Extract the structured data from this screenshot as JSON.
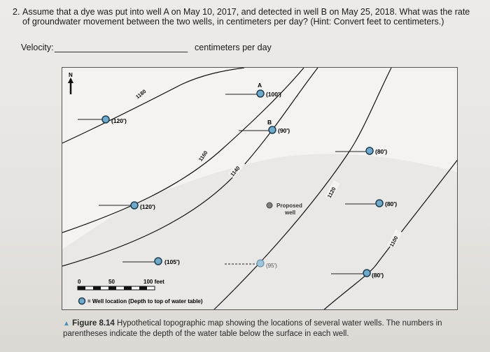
{
  "question": {
    "number": "2.",
    "text": "Assume that a dye was put into well A on May 10, 2017, and detected in well B on May 25, 2018. What was the rate of groundwater movement between the two wells, in centimeters per day? (Hint: Convert feet to centimeters.)",
    "velocity_label": "Velocity:",
    "velocity_unit": "centimeters per day"
  },
  "map": {
    "north_label": "N",
    "contours": [
      "1180",
      "1160",
      "1140",
      "1120",
      "1100"
    ],
    "wells": [
      {
        "id": "",
        "depth": "(120')"
      },
      {
        "id": "A",
        "depth": "(100')"
      },
      {
        "id": "B",
        "depth": "(90')"
      },
      {
        "id": "",
        "depth": "(80')"
      },
      {
        "id": "",
        "depth": "(120')"
      },
      {
        "id": "",
        "depth": "(80')"
      },
      {
        "id": "",
        "depth": "(105')"
      },
      {
        "id": "",
        "depth": "(95')"
      },
      {
        "id": "",
        "depth": "(80')"
      }
    ],
    "proposed_well_label_1": "Proposed",
    "proposed_well_label_2": "well",
    "scale": {
      "labels": [
        "0",
        "50",
        "100 feet"
      ]
    },
    "legend": "= Well location (Depth to top of water table)",
    "colors": {
      "well_fill": "#6fa8c8",
      "well_stroke": "#1f3f52",
      "proposed_fill": "#7d7d7d"
    }
  },
  "caption": {
    "marker": "▲",
    "figure": "Figure 8.14",
    "text": "Hypothetical topographic map showing the locations of several water wells. The numbers in parentheses indicate the depth of the water table below the surface in each well."
  }
}
